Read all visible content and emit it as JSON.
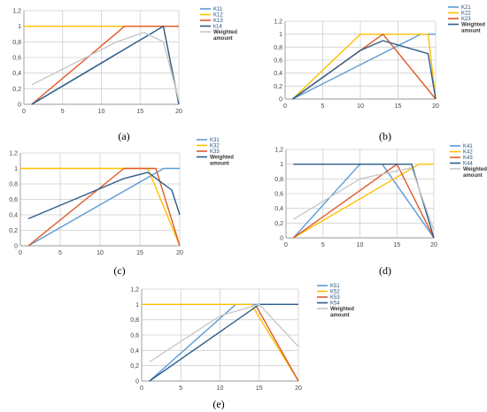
{
  "colors": {
    "c1": "#5b9bd5",
    "c2": "#ffc000",
    "c3": "#e15a2b",
    "c4": "#2e5d8a",
    "c5": "#c8c8c8"
  },
  "chart_data": [
    {
      "type": "line",
      "panel": "(a)",
      "xlim": [
        0,
        20
      ],
      "ylim": [
        0,
        1.2
      ],
      "xticks": [
        0,
        5,
        10,
        15,
        20
      ],
      "yticks": [
        0,
        0.2,
        0.4,
        0.6,
        0.8,
        1,
        1.2
      ],
      "xtick_labels": [
        "0",
        "5",
        "10",
        "15",
        "20"
      ],
      "ytick_labels": [
        "0",
        "0,2",
        "0,4",
        "0,6",
        "0,8",
        "1",
        "1,2"
      ],
      "grid": true,
      "legend": "right",
      "series": [
        {
          "name": "K11",
          "color": "c1",
          "x": [
            1,
            18,
            19,
            20
          ],
          "y": [
            0,
            1,
            1,
            1
          ]
        },
        {
          "name": "K12",
          "color": "c2",
          "x": [
            0,
            15,
            18,
            20
          ],
          "y": [
            1,
            1,
            1,
            0
          ]
        },
        {
          "name": "K13",
          "color": "c3",
          "x": [
            1,
            13,
            17,
            20
          ],
          "y": [
            0,
            1,
            1,
            1
          ]
        },
        {
          "name": "k14",
          "color": "c4",
          "x": [
            1,
            18,
            20
          ],
          "y": [
            0,
            1,
            0
          ]
        },
        {
          "name": "Weighted amount",
          "color": "c5",
          "x": [
            1,
            6,
            12,
            15.5,
            18,
            20
          ],
          "y": [
            0.25,
            0.5,
            0.8,
            0.92,
            0.8,
            0.05
          ]
        }
      ]
    },
    {
      "type": "line",
      "panel": "(b)",
      "xlim": [
        0,
        20
      ],
      "ylim": [
        0,
        1.2
      ],
      "xticks": [
        0,
        5,
        10,
        15,
        20
      ],
      "yticks": [
        0,
        0.2,
        0.4,
        0.6,
        0.8,
        1,
        1.2
      ],
      "xtick_labels": [
        "0",
        "5",
        "10",
        "15",
        "20"
      ],
      "ytick_labels": [
        "0",
        "0,2",
        "0,4",
        "0,6",
        "0,8",
        "1",
        "1,2"
      ],
      "grid": true,
      "legend": "right",
      "series": [
        {
          "name": "K21",
          "color": "c1",
          "x": [
            1,
            18,
            20
          ],
          "y": [
            0,
            1,
            1
          ]
        },
        {
          "name": "K22",
          "color": "c2",
          "x": [
            1,
            10,
            19,
            20
          ],
          "y": [
            0,
            1,
            1,
            0
          ]
        },
        {
          "name": "K23",
          "color": "c3",
          "x": [
            1,
            13,
            20
          ],
          "y": [
            0,
            1,
            0
          ]
        },
        {
          "name": "Weighted amount",
          "color": "c4",
          "x": [
            1,
            10,
            13,
            19,
            20
          ],
          "y": [
            0,
            0.75,
            0.9,
            0.7,
            0
          ]
        }
      ]
    },
    {
      "type": "line",
      "panel": "(c)",
      "xlim": [
        0,
        20
      ],
      "ylim": [
        0,
        1.2
      ],
      "xticks": [
        0,
        5,
        10,
        15,
        20
      ],
      "yticks": [
        0,
        0.2,
        0.4,
        0.6,
        0.8,
        1,
        1.2
      ],
      "xtick_labels": [
        "0",
        "5",
        "10",
        "15",
        "20"
      ],
      "ytick_labels": [
        "0",
        "0,2",
        "0,4",
        "0,6",
        "0,8",
        "1",
        "1,2"
      ],
      "grid": true,
      "legend": "right",
      "series": [
        {
          "name": "K31",
          "color": "c1",
          "x": [
            1,
            18,
            20
          ],
          "y": [
            0,
            1,
            1
          ]
        },
        {
          "name": "K32",
          "color": "c2",
          "x": [
            0,
            16,
            20
          ],
          "y": [
            1,
            1,
            0
          ]
        },
        {
          "name": "K33",
          "color": "c3",
          "x": [
            1,
            13,
            17,
            20
          ],
          "y": [
            0,
            1,
            1,
            0
          ]
        },
        {
          "name": "Weighted amount",
          "color": "c4",
          "x": [
            1,
            13,
            16,
            19,
            20
          ],
          "y": [
            0.35,
            0.87,
            0.95,
            0.72,
            0.4
          ]
        }
      ]
    },
    {
      "type": "line",
      "panel": "(d)",
      "xlim": [
        0,
        20
      ],
      "ylim": [
        0,
        1.2
      ],
      "xticks": [
        0,
        5,
        10,
        15,
        20
      ],
      "yticks": [
        0,
        0.2,
        0.4,
        0.6,
        0.8,
        1,
        1.2
      ],
      "xtick_labels": [
        "0",
        "5",
        "10",
        "15",
        "20"
      ],
      "ytick_labels": [
        "0",
        "0,2",
        "0,4",
        "0,6",
        "0,8",
        "1",
        "1,2"
      ],
      "grid": true,
      "legend": "right",
      "series": [
        {
          "name": "K41",
          "color": "c1",
          "x": [
            1,
            10,
            13,
            20
          ],
          "y": [
            0,
            1,
            1,
            0
          ]
        },
        {
          "name": "K42",
          "color": "c2",
          "x": [
            1,
            18,
            20
          ],
          "y": [
            0,
            1,
            1
          ]
        },
        {
          "name": "K43",
          "color": "c3",
          "x": [
            1,
            15,
            20
          ],
          "y": [
            0,
            1,
            0
          ]
        },
        {
          "name": "K44",
          "color": "c4",
          "x": [
            1,
            17,
            20
          ],
          "y": [
            1,
            1,
            0
          ]
        },
        {
          "name": "Weighted amount",
          "color": "c5",
          "x": [
            1,
            10,
            17,
            20
          ],
          "y": [
            0.25,
            0.8,
            0.95,
            0.1
          ]
        }
      ]
    },
    {
      "type": "line",
      "panel": "(e)",
      "xlim": [
        0,
        20
      ],
      "ylim": [
        0,
        1.2
      ],
      "xticks": [
        0,
        5,
        10,
        15,
        20
      ],
      "yticks": [
        0,
        0.2,
        0.4,
        0.6,
        0.8,
        1,
        1.2
      ],
      "xtick_labels": [
        "0",
        "5",
        "10",
        "15",
        "20"
      ],
      "ytick_labels": [
        "0",
        "0,2",
        "0,4",
        "0,6",
        "0,8",
        "1",
        "1,2"
      ],
      "grid": true,
      "legend": "right",
      "series": [
        {
          "name": "K51",
          "color": "c1",
          "x": [
            1,
            12,
            20
          ],
          "y": [
            0,
            1,
            1
          ]
        },
        {
          "name": "K52",
          "color": "c2",
          "x": [
            0,
            14,
            20
          ],
          "y": [
            1,
            1,
            0
          ]
        },
        {
          "name": "K53",
          "color": "c3",
          "x": [
            14.5,
            20
          ],
          "y": [
            1,
            0
          ]
        },
        {
          "name": "K54",
          "color": "c4",
          "x": [
            1,
            15,
            20
          ],
          "y": [
            0,
            1,
            1
          ]
        },
        {
          "name": "Weighted amount",
          "color": "c5",
          "x": [
            1,
            10,
            15,
            20
          ],
          "y": [
            0.25,
            0.85,
            1,
            0.45
          ]
        }
      ]
    }
  ]
}
